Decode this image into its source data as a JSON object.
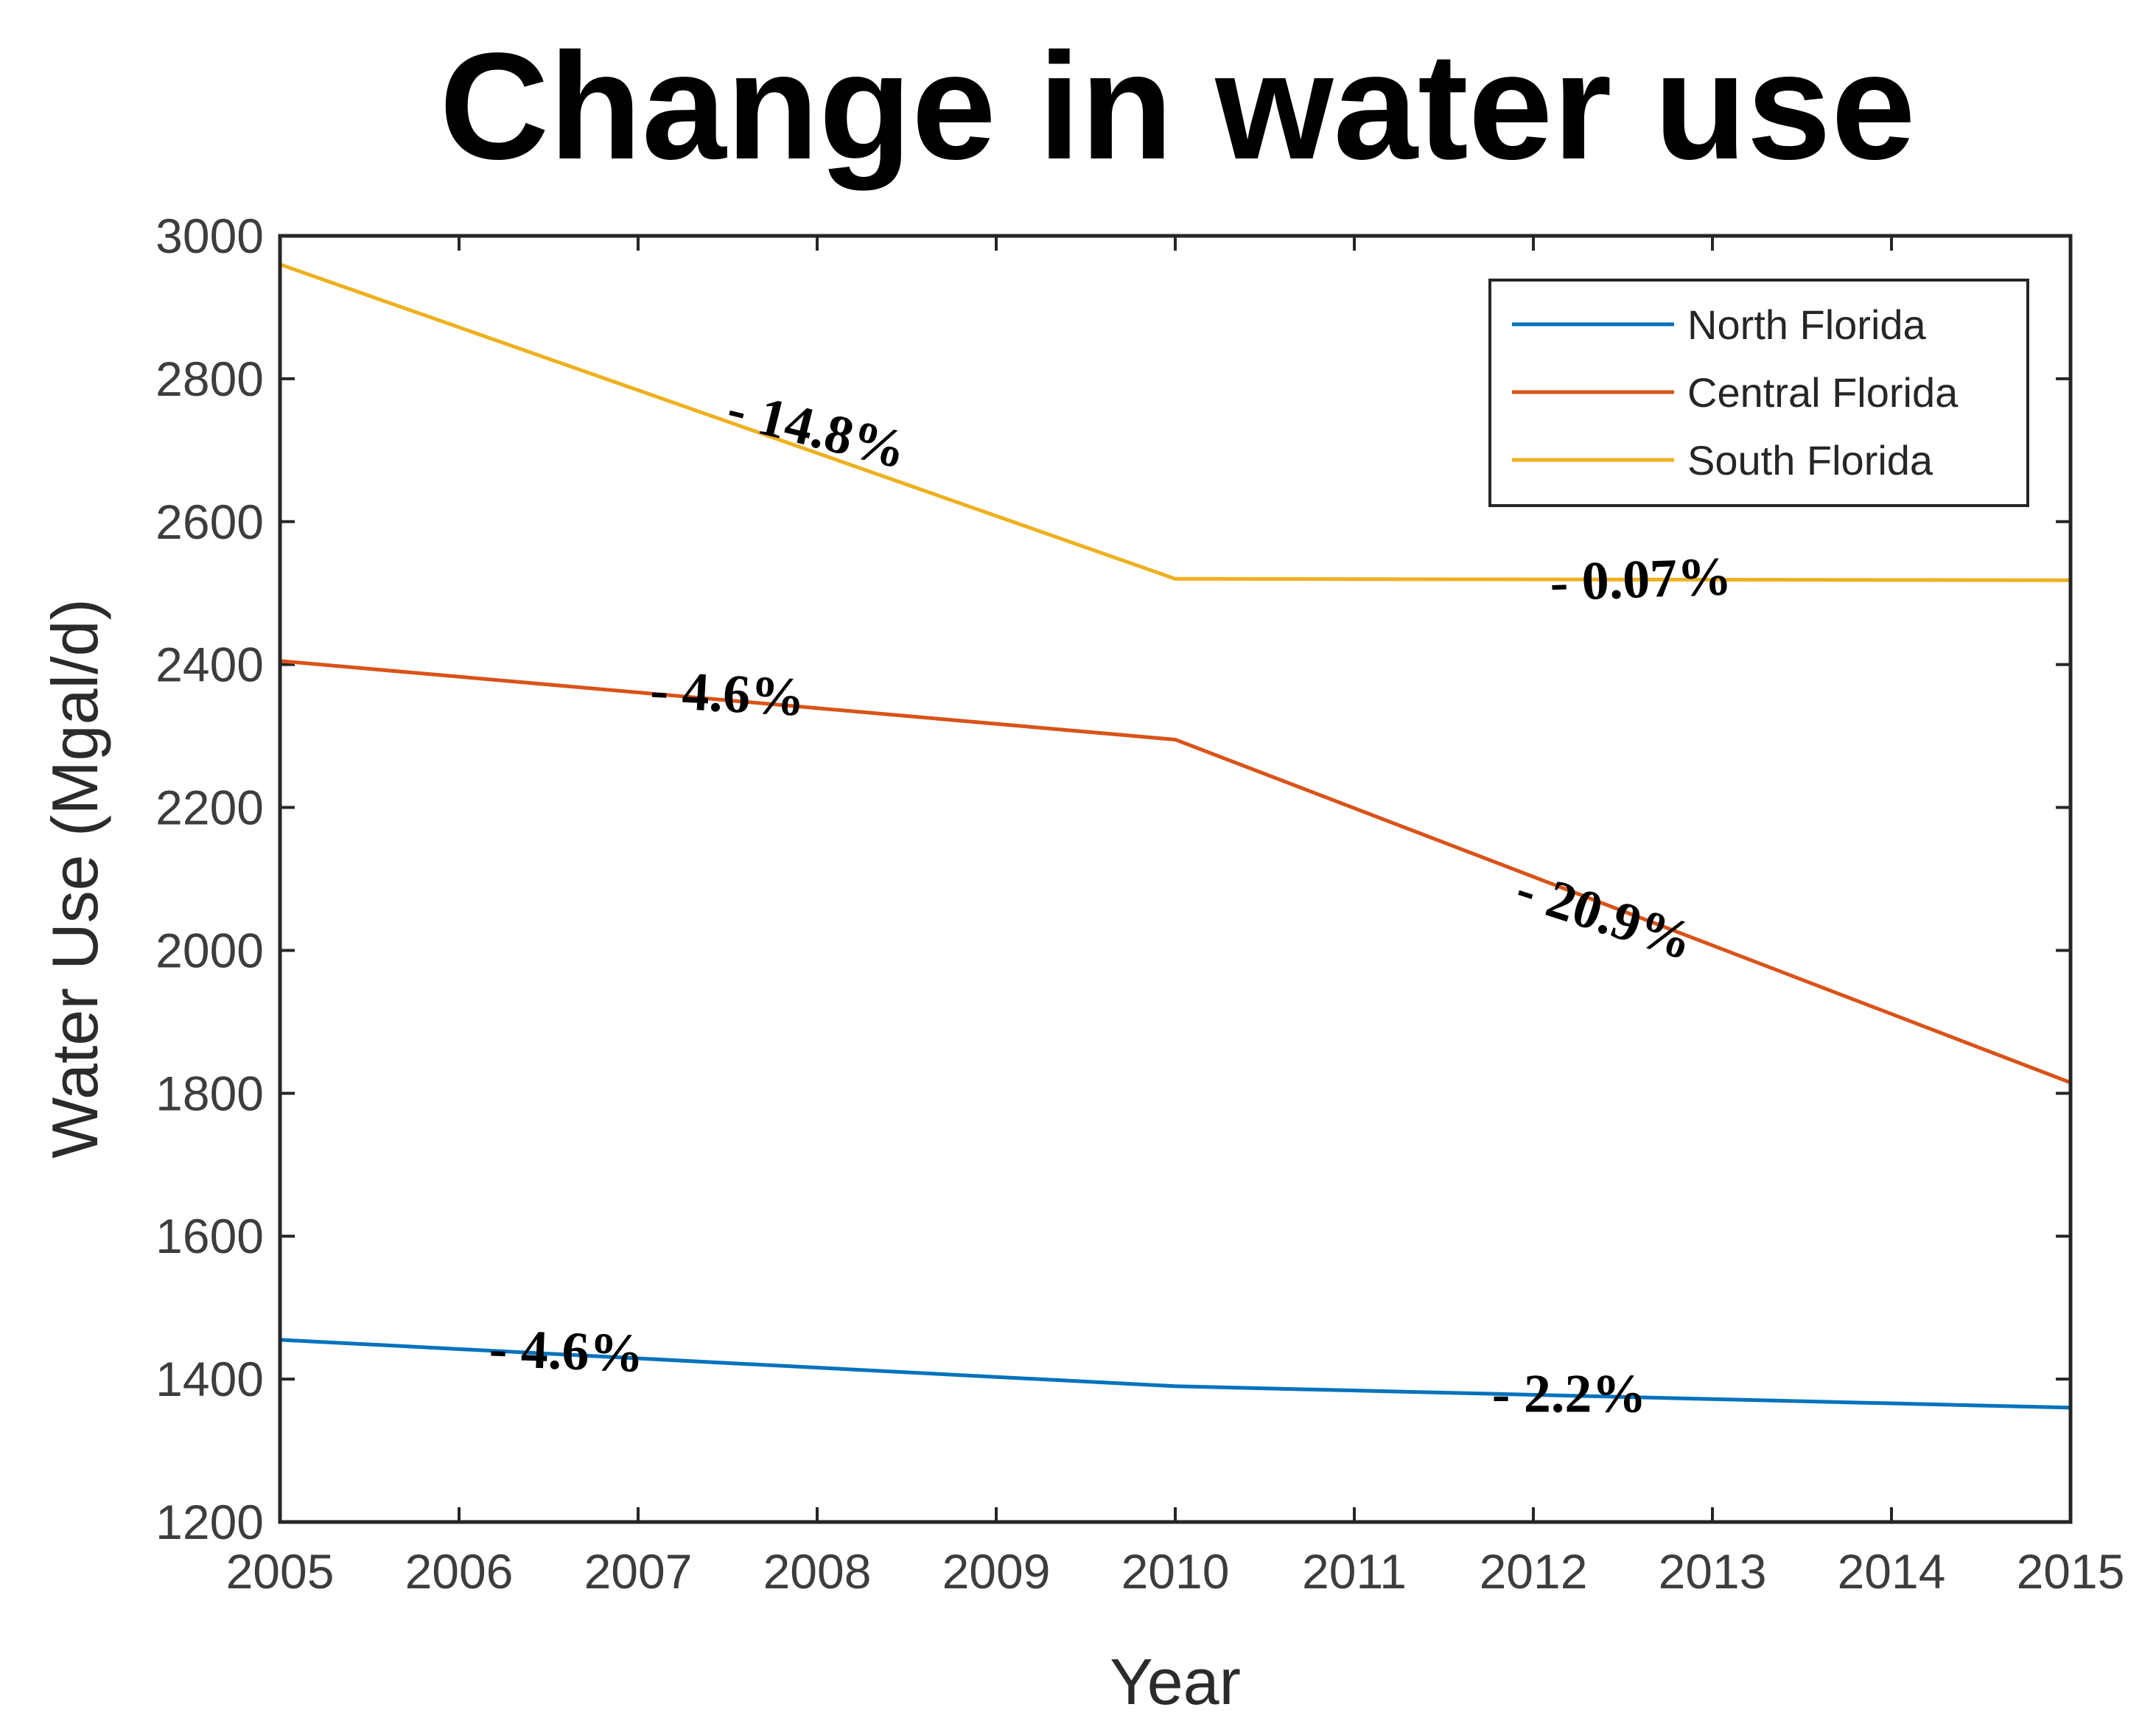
{
  "chart_data": {
    "type": "line",
    "title": "Change in water use",
    "xlabel": "Year",
    "ylabel": "Water Use (Mgal/d)",
    "x": [
      2005,
      2010,
      2015
    ],
    "xlim": [
      2005,
      2015
    ],
    "ylim": [
      1200,
      3000
    ],
    "xticks": [
      "2005",
      "2006",
      "2007",
      "2008",
      "2009",
      "2010",
      "2011",
      "2012",
      "2013",
      "2014",
      "2015"
    ],
    "yticks": [
      "1200",
      "1400",
      "1600",
      "1800",
      "2000",
      "2200",
      "2400",
      "2600",
      "2800",
      "3000"
    ],
    "grid": false,
    "legend_position": "top-right",
    "series": [
      {
        "name": "North Florida",
        "color": "#0072BD",
        "values": [
          1455,
          1390,
          1360
        ]
      },
      {
        "name": "Central Florida",
        "color": "#D95319",
        "values": [
          2405,
          2295,
          1815
        ]
      },
      {
        "name": "South Florida",
        "color": "#EDB120",
        "values": [
          2960,
          2520,
          2518
        ]
      }
    ],
    "annotations": [
      {
        "text": "- 14.8%",
        "series": "South Florida",
        "x": 2008.0,
        "y": 2730,
        "angle": 14
      },
      {
        "text": "- 0.07%",
        "series": "South Florida",
        "x": 2012.6,
        "y": 2520,
        "angle": -2
      },
      {
        "text": "- 4.6%",
        "series": "Central Florida",
        "x": 2007.5,
        "y": 2360,
        "angle": 3
      },
      {
        "text": "- 20.9%",
        "series": "Central Florida",
        "x": 2012.4,
        "y": 2050,
        "angle": 18
      },
      {
        "text": "- 4.6%",
        "series": "North Florida",
        "x": 2006.6,
        "y": 1440,
        "angle": 2
      },
      {
        "text": "- 2.2%",
        "series": "North Florida",
        "x": 2012.2,
        "y": 1380,
        "angle": 0
      }
    ]
  }
}
